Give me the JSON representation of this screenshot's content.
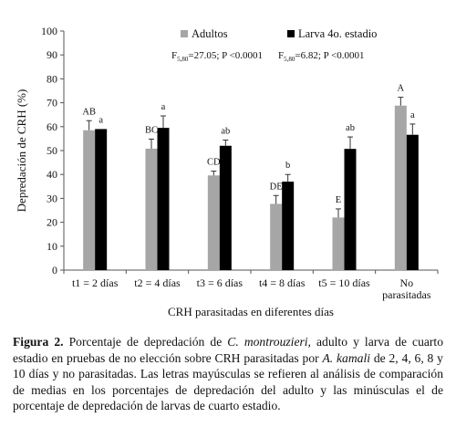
{
  "chart_data": {
    "type": "bar",
    "title": "",
    "xlabel": "CRH parasitadas en diferentes días",
    "ylabel": "Depredación de CRH (%)",
    "ylim": [
      0,
      100
    ],
    "yticks": [
      0,
      10,
      20,
      30,
      40,
      50,
      60,
      70,
      80,
      90,
      100
    ],
    "grid": false,
    "legend_position": "top-right",
    "categories": [
      [
        "t1 = 2 días"
      ],
      [
        "t2 = 4 días"
      ],
      [
        "t3 = 6 días"
      ],
      [
        "t4 = 8 días"
      ],
      [
        "t5 = 10 días"
      ],
      [
        "No",
        "parasitadas"
      ]
    ],
    "series": [
      {
        "name": "Adultos",
        "color": "#a6a6a6",
        "values": [
          58.5,
          50.8,
          39.6,
          27.7,
          22.0,
          68.8
        ],
        "errors": [
          4.0,
          4.0,
          1.8,
          3.5,
          3.6,
          3.5
        ],
        "letters": [
          "AB",
          "BC",
          "CD",
          "DE",
          "E",
          "A"
        ],
        "stat": {
          "F": "F",
          "sub": "5,80",
          "text": "=27.05; P <0.0001"
        }
      },
      {
        "name": "Larva 4o. estadio",
        "color": "#000000",
        "values": [
          59.0,
          59.5,
          52.0,
          37.0,
          50.7,
          56.6
        ],
        "errors": [
          0.0,
          5.0,
          2.4,
          3.0,
          5.0,
          4.5
        ],
        "letters": [
          "a",
          "a",
          "ab",
          "b",
          "ab",
          "a"
        ],
        "stat": {
          "F": "F",
          "sub": "5,80",
          "text": "=6.82; P <0.0001"
        }
      }
    ]
  },
  "caption": {
    "label": "Figura 2.",
    "t1": " Porcentaje de depredación de ",
    "i1": "C. montrouzieri,",
    "t2": " adulto y larva de cuarto estadio en pruebas de no elección sobre CRH parasitadas por ",
    "i2": "A. kamali",
    "t3": " de 2, 4, 6, 8 y 10 días y no parasitadas. Las letras mayúsculas se refieren al análisis de comparación de medias en los porcentajes de depredación del adulto y las minúsculas el de porcentaje de depredación de larvas de cuarto estadio."
  }
}
